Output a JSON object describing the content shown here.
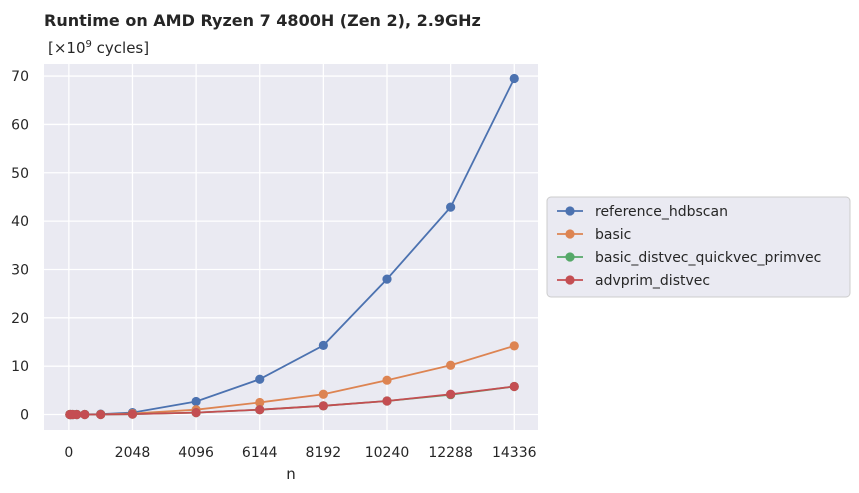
{
  "chart_data": {
    "type": "line",
    "title": "Runtime on AMD Ryzen 7 4800H (Zen 2),  2.9GHz",
    "subtitle_prefix": "[×10",
    "subtitle_exponent": "9",
    "subtitle_suffix": " cycles]",
    "xlabel": "n",
    "ylabel": "",
    "xlim": [
      -800,
      15100
    ],
    "ylim": [
      -3.2,
      72.5
    ],
    "xticks": [
      0,
      2048,
      4096,
      6144,
      8192,
      10240,
      12288,
      14336
    ],
    "xtick_labels": [
      "0",
      "2048",
      "4096",
      "6144",
      "8192",
      "10240",
      "12288",
      "14336"
    ],
    "yticks": [
      0,
      10,
      20,
      30,
      40,
      50,
      60,
      70
    ],
    "ytick_labels": [
      "0",
      "10",
      "20",
      "30",
      "40",
      "50",
      "60",
      "70"
    ],
    "grid": true,
    "legend_position": "center-right, outside plot",
    "x": [
      32,
      64,
      128,
      256,
      512,
      1024,
      2048,
      4096,
      6144,
      8192,
      10240,
      12288,
      14336
    ],
    "series": [
      {
        "name": "reference_hdbscan",
        "color": "#4c72b0",
        "values": [
          0.001,
          0.002,
          0.005,
          0.01,
          0.02,
          0.08,
          0.4,
          2.7,
          7.3,
          14.3,
          28.0,
          42.9,
          69.5
        ]
      },
      {
        "name": "basic",
        "color": "#dd8452",
        "values": [
          0.001,
          0.001,
          0.003,
          0.005,
          0.01,
          0.03,
          0.2,
          1.0,
          2.5,
          4.2,
          7.1,
          10.2,
          14.2
        ]
      },
      {
        "name": "basic_distvec_quickvec_primvec",
        "color": "#55a868",
        "values": [
          0.0,
          0.001,
          0.001,
          0.002,
          0.005,
          0.01,
          0.08,
          0.4,
          1.0,
          1.8,
          2.8,
          4.1,
          5.8
        ]
      },
      {
        "name": "advprim_distvec",
        "color": "#c44e52",
        "values": [
          0.0,
          0.001,
          0.001,
          0.002,
          0.005,
          0.01,
          0.08,
          0.4,
          1.0,
          1.8,
          2.8,
          4.2,
          5.8
        ]
      }
    ]
  }
}
